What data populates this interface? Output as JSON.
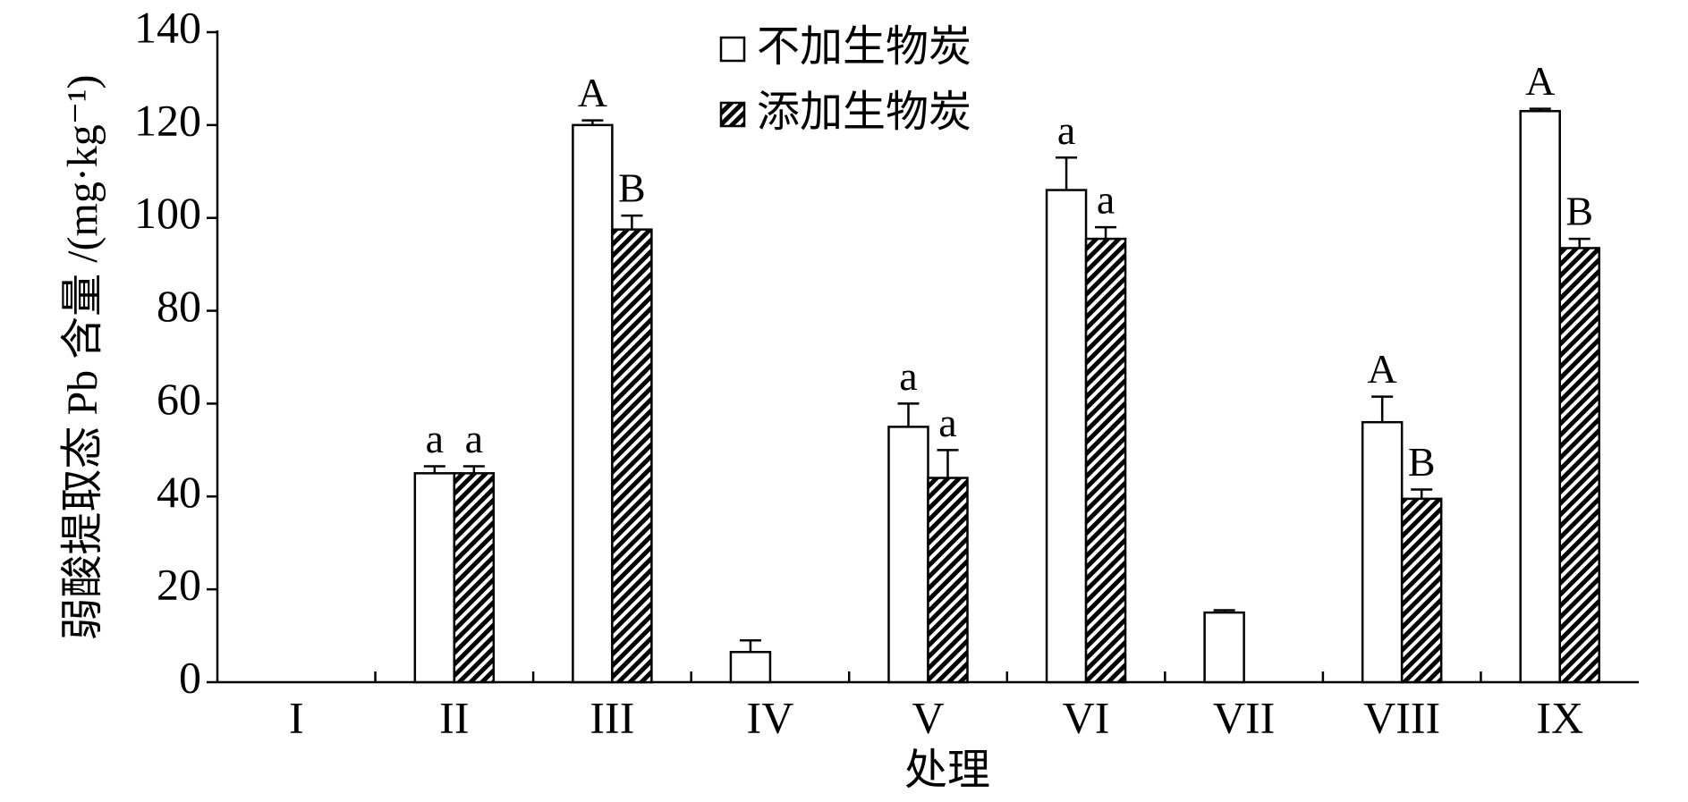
{
  "chart_data": {
    "type": "bar",
    "xlabel": "处理",
    "ylabel": "弱酸提取态 Pb 含量 /(mg·kg⁻¹)",
    "categories": [
      "I",
      "II",
      "III",
      "IV",
      "V",
      "VI",
      "VII",
      "VIII",
      "IX"
    ],
    "series": [
      {
        "name": "不加生物炭",
        "color": "#ffffff",
        "hatch": false,
        "values": [
          null,
          45,
          120,
          6.5,
          55,
          106,
          15,
          56,
          123
        ],
        "errors": [
          null,
          1.5,
          1,
          2.5,
          5,
          7,
          0.5,
          5.5,
          0.5
        ],
        "labels": [
          null,
          "a",
          "A",
          null,
          "a",
          "a",
          null,
          "A",
          "A"
        ]
      },
      {
        "name": "添加生物炭",
        "color": "#000000",
        "hatch": true,
        "values": [
          null,
          45,
          97.5,
          null,
          44,
          95.5,
          null,
          39.5,
          93.5
        ],
        "errors": [
          null,
          1.5,
          3,
          null,
          6,
          2.5,
          null,
          2,
          2
        ],
        "labels": [
          null,
          "a",
          "B",
          null,
          "a",
          "a",
          null,
          "B",
          "B"
        ]
      }
    ],
    "ylim": [
      0,
      140
    ],
    "yticks": [
      0,
      20,
      40,
      60,
      80,
      100,
      120,
      140
    ],
    "legend": "upper center"
  }
}
